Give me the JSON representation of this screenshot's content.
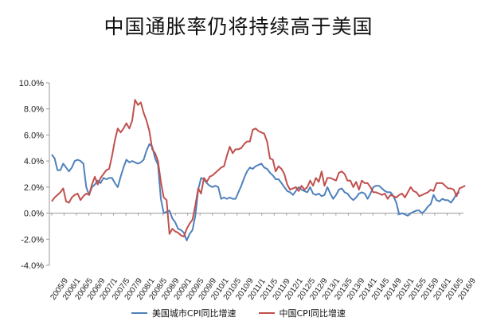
{
  "chart_data": {
    "type": "line",
    "title": "中国通胀率仍将持续高于美国",
    "xlabel": "",
    "ylabel": "",
    "ylim": [
      -4,
      10
    ],
    "yticks": [
      "10.0%",
      "8.0%",
      "6.0%",
      "4.0%",
      "2.0%",
      "0.0%",
      "-2.0%",
      "-4.0%"
    ],
    "grid": false,
    "legend_position": "bottom",
    "x_ticks": [
      "2005/9",
      "2006/1",
      "2006/5",
      "2006/9",
      "2007/1",
      "2007/5",
      "2007/9",
      "2008/1",
      "2008/5",
      "2008/9",
      "2009/1",
      "2009/5",
      "2009/9",
      "2010/1",
      "2010/5",
      "2010/9",
      "2011/1",
      "2011/5",
      "2011/9",
      "2012/1",
      "2012/5",
      "2012/9",
      "2013/1",
      "2013/5",
      "2013/9",
      "2014/1",
      "2014/5",
      "2014/9",
      "2015/1",
      "2015/5",
      "2015/9",
      "2016/1",
      "2016/5",
      "2016/9"
    ],
    "series": [
      {
        "name": "美国城市CPI同比增速",
        "color": "#4f81bd",
        "values": [
          4.5,
          4.2,
          3.3,
          3.3,
          3.8,
          3.5,
          3.2,
          3.5,
          4.0,
          4.1,
          4.0,
          3.8,
          2.0,
          1.4,
          2.0,
          2.2,
          2.5,
          2.3,
          2.7,
          2.6,
          2.7,
          2.7,
          2.3,
          2.0,
          2.8,
          3.5,
          4.1,
          3.9,
          4.0,
          3.9,
          3.8,
          3.9,
          4.1,
          4.8,
          5.3,
          5.1,
          4.2,
          3.7,
          1.1,
          0.0,
          0.1,
          0.2,
          -0.4,
          -0.7,
          -1.2,
          -1.3,
          -1.5,
          -2.1,
          -1.6,
          -1.3,
          -0.2,
          1.8,
          2.7,
          2.6,
          2.3,
          2.1,
          2.0,
          2.1,
          2.0,
          1.1,
          1.2,
          1.1,
          1.2,
          1.1,
          1.1,
          1.6,
          2.1,
          2.7,
          3.2,
          3.5,
          3.4,
          3.6,
          3.7,
          3.8,
          3.5,
          3.4,
          3.1,
          2.9,
          2.6,
          2.6,
          2.3,
          2.0,
          1.7,
          1.6,
          1.4,
          1.7,
          2.0,
          1.8,
          1.7,
          1.6,
          2.0,
          1.5,
          1.4,
          1.5,
          1.3,
          1.4,
          2.0,
          1.5,
          1.1,
          1.4,
          1.8,
          1.9,
          1.6,
          1.5,
          1.2,
          1.0,
          1.2,
          1.5,
          1.6,
          1.5,
          1.1,
          1.5,
          2.0,
          2.1,
          2.1,
          1.9,
          1.7,
          1.6,
          1.6,
          1.3,
          0.8,
          -0.1,
          0.0,
          -0.1,
          -0.2,
          0.0,
          0.1,
          0.2,
          0.2,
          0.0,
          0.2,
          0.5,
          0.7,
          1.4,
          1.0,
          0.9,
          1.1,
          1.0,
          1.0,
          0.8,
          1.1,
          1.5,
          1.6
        ]
      },
      {
        "name": "中国CPI同比增速",
        "color": "#c0504d",
        "values": [
          0.9,
          1.2,
          1.4,
          1.6,
          1.9,
          0.9,
          0.8,
          1.2,
          1.4,
          1.5,
          1.0,
          1.3,
          1.5,
          1.4,
          2.2,
          2.8,
          2.2,
          2.7,
          3.0,
          3.3,
          3.4,
          4.4,
          5.6,
          6.5,
          6.2,
          6.5,
          6.9,
          6.5,
          7.1,
          8.7,
          8.3,
          8.5,
          7.7,
          7.1,
          6.3,
          4.9,
          4.6,
          4.0,
          2.4,
          1.2,
          1.0,
          -1.6,
          -1.2,
          -1.4,
          -1.5,
          -1.7,
          -1.8,
          -1.2,
          -0.8,
          -0.5,
          0.6,
          1.9,
          1.5,
          2.7,
          2.4,
          2.8,
          2.9,
          3.1,
          3.3,
          3.5,
          3.6,
          4.4,
          5.1,
          4.6,
          4.9,
          4.9,
          5.0,
          5.3,
          5.5,
          5.5,
          6.4,
          6.5,
          6.3,
          6.2,
          6.1,
          5.5,
          4.2,
          4.1,
          3.2,
          3.6,
          3.4,
          3.0,
          2.2,
          1.8,
          1.9,
          2.0,
          1.7,
          2.1,
          1.8,
          2.0,
          2.5,
          2.1,
          2.7,
          2.4,
          3.2,
          2.1,
          2.7,
          2.7,
          2.6,
          2.5,
          3.1,
          3.2,
          3.0,
          2.5,
          2.5,
          2.0,
          2.4,
          1.8,
          2.5,
          2.3,
          2.3,
          2.0,
          1.6,
          1.6,
          1.5,
          1.4,
          1.5,
          1.1,
          1.4,
          1.3,
          1.2,
          1.4,
          1.5,
          1.2,
          1.6,
          2.0,
          1.7,
          1.6,
          1.3,
          1.4,
          1.5,
          1.6,
          1.8,
          1.7,
          2.3,
          2.3,
          2.3,
          2.1,
          1.9,
          1.9,
          1.8,
          1.3,
          1.9,
          2.0,
          2.1
        ]
      }
    ]
  },
  "legend": {
    "us_label": "美国城市CPI同比增速",
    "cn_label": "中国CPI同比增速"
  }
}
